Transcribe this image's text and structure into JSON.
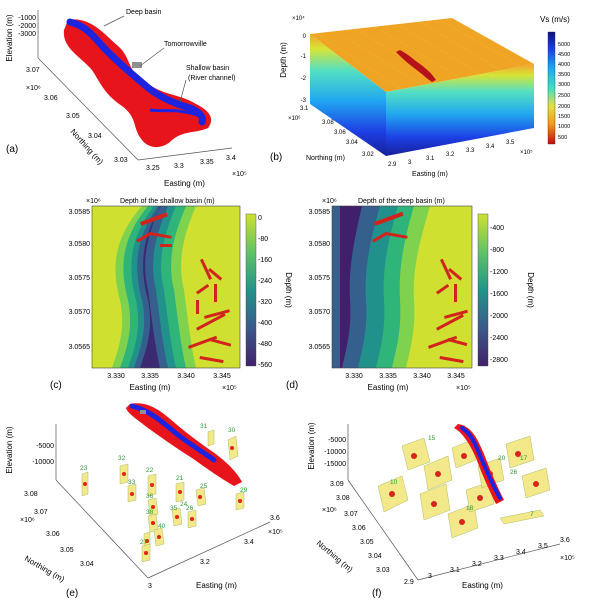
{
  "panels": {
    "a": {
      "label": "(a)",
      "z_label": "Elevation (m)",
      "z_ticks": [
        "-1000",
        "-2000",
        "-3000"
      ],
      "y_label": "Northing (m)",
      "y_exp": "×10⁶",
      "y_ticks": [
        "3.07",
        "3.06",
        "3.05",
        "3.04",
        "3.03"
      ],
      "x_label": "Easting (m)",
      "x_exp": "×10⁵",
      "x_ticks": [
        "3.25",
        "3.3",
        "3.35",
        "3.4"
      ],
      "annotations": {
        "deep": "Deep basin",
        "town": "Tomorrowville",
        "shallow1": "Shallow basin",
        "shallow2": "(River channel)"
      },
      "colors": {
        "shallow": "#e8141b",
        "deep": "#1d24e0"
      }
    },
    "b": {
      "label": "(b)",
      "colorbar_title": "Vs (m/s)",
      "colorbar_ticks": [
        "5000",
        "4500",
        "4000",
        "3500",
        "3000",
        "2500",
        "2000",
        "1500",
        "1000",
        "500"
      ],
      "z_label": "Depth (m)",
      "z_exp": "×10⁴",
      "z_ticks": [
        "0",
        "-1",
        "-2",
        "-3"
      ],
      "y_label": "Northing (m)",
      "y_exp": "×10⁶",
      "y_ticks": [
        "3.1",
        "3.08",
        "3.06",
        "3.04",
        "3.02"
      ],
      "x_label": "Easting (m)",
      "x_exp": "×10⁵",
      "x_ticks": [
        "2.9",
        "3",
        "3.1",
        "3.2",
        "3.3",
        "3.4",
        "3.5"
      ]
    },
    "c": {
      "label": "(c)",
      "title": "Depth of the shallow basin (m)",
      "y_exp": "×10⁶",
      "y_ticks": [
        "3.0585",
        "3.0580",
        "3.0575",
        "3.0570",
        "3.0565"
      ],
      "x_label": "Easting (m)",
      "x_exp": "×10⁵",
      "x_ticks": [
        "3.330",
        "3.335",
        "3.340",
        "3.345"
      ],
      "colorbar_label": "Depth (m)",
      "colorbar_ticks": [
        "0",
        "-80",
        "-160",
        "-240",
        "-320",
        "-400",
        "-480",
        "-560"
      ]
    },
    "d": {
      "label": "(d)",
      "title": "Depth of the deep basin (m)",
      "y_exp": "×10⁶",
      "y_ticks": [
        "3.0585",
        "3.0580",
        "3.0575",
        "3.0570",
        "3.0565"
      ],
      "x_label": "Easting (m)",
      "x_exp": "×10⁵",
      "x_ticks": [
        "3.330",
        "3.335",
        "3.340",
        "3.345"
      ],
      "colorbar_label": "Depth (m)",
      "colorbar_ticks": [
        "-400",
        "-800",
        "-1200",
        "-1600",
        "-2000",
        "-2400",
        "-2800"
      ]
    },
    "e": {
      "label": "(e)",
      "z_label": "Elevation (m)",
      "z_ticks": [
        "-5000",
        "-10000"
      ],
      "y_label": "Northing (m)",
      "y_exp": "×10⁶",
      "y_ticks": [
        "3.08",
        "3.07",
        "3.06",
        "3.05",
        "3.04"
      ],
      "x_label": "Easting (m)",
      "x_exp": "×10⁵",
      "x_ticks": [
        "3",
        "3.2",
        "3.4",
        "3.6"
      ],
      "faults": [
        "30",
        "31",
        "32",
        "33",
        "23",
        "22",
        "21",
        "36",
        "24",
        "25",
        "29",
        "38",
        "40",
        "35",
        "26",
        "27"
      ]
    },
    "f": {
      "label": "(f)",
      "z_label": "Elevation (m)",
      "z_ticks": [
        "-5000",
        "-10000",
        "-15000"
      ],
      "y_label": "Northing (m)",
      "y_exp": "×10⁶",
      "y_ticks": [
        "3.09",
        "3.08",
        "3.07",
        "3.06",
        "3.05",
        "3.04",
        "3.03"
      ],
      "x_label": "Easting (m)",
      "x_exp": "×10⁵",
      "x_ticks": [
        "2.9",
        "3",
        "3.1",
        "3.2",
        "3.3",
        "3.4",
        "3.5",
        "3.6"
      ],
      "faults": [
        "15",
        "10",
        "17",
        "20",
        "26",
        "18",
        "7"
      ]
    }
  }
}
